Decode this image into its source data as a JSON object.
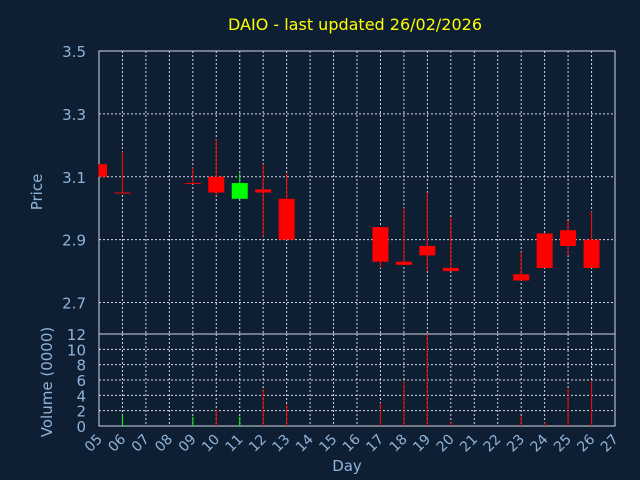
{
  "chart_data": [
    {
      "type": "candlestick",
      "title": "DAIO - last updated 26/02/2026",
      "ylabel": "Price",
      "ylim": [
        2.6,
        3.5
      ],
      "yticks": [
        "3.5",
        "3.3",
        "3.1",
        "2.9",
        "2.7"
      ],
      "grid": true,
      "colors": {
        "up": "#00ff00",
        "down": "#ff0000"
      },
      "candles": [
        {
          "day": "05",
          "open": 3.14,
          "high": 3.14,
          "low": 3.1,
          "close": 3.1
        },
        {
          "day": "06",
          "open": 3.05,
          "high": 3.18,
          "low": 3.05,
          "close": 3.05
        },
        {
          "day": "09",
          "open": 3.08,
          "high": 3.13,
          "low": 3.08,
          "close": 3.08
        },
        {
          "day": "10",
          "open": 3.1,
          "high": 3.22,
          "low": 3.04,
          "close": 3.05
        },
        {
          "day": "11",
          "open": 3.03,
          "high": 3.11,
          "low": 3.03,
          "close": 3.08
        },
        {
          "day": "12",
          "open": 3.06,
          "high": 3.14,
          "low": 2.91,
          "close": 3.05
        },
        {
          "day": "13",
          "open": 3.03,
          "high": 3.11,
          "low": 2.9,
          "close": 2.9
        },
        {
          "day": "17",
          "open": 2.94,
          "high": 2.94,
          "low": 2.81,
          "close": 2.83
        },
        {
          "day": "18",
          "open": 2.83,
          "high": 3.0,
          "low": 2.82,
          "close": 2.82
        },
        {
          "day": "19",
          "open": 2.88,
          "high": 3.05,
          "low": 2.8,
          "close": 2.85
        },
        {
          "day": "20",
          "open": 2.81,
          "high": 2.97,
          "low": 2.8,
          "close": 2.8
        },
        {
          "day": "23",
          "open": 2.79,
          "high": 2.86,
          "low": 2.77,
          "close": 2.77
        },
        {
          "day": "24",
          "open": 2.92,
          "high": 2.92,
          "low": 2.81,
          "close": 2.81
        },
        {
          "day": "25",
          "open": 2.93,
          "high": 2.96,
          "low": 2.85,
          "close": 2.88
        },
        {
          "day": "26",
          "open": 2.9,
          "high": 2.99,
          "low": 2.81,
          "close": 2.81
        }
      ]
    },
    {
      "type": "bar",
      "ylabel": "Volume (0000)",
      "xlabel": "Day",
      "ylim": [
        0,
        12
      ],
      "yticks": [
        "12",
        "10",
        "8",
        "6",
        "4",
        "2",
        "0"
      ],
      "categories": [
        "05",
        "06",
        "07",
        "08",
        "09",
        "10",
        "11",
        "12",
        "13",
        "14",
        "15",
        "16",
        "17",
        "18",
        "19",
        "20",
        "21",
        "22",
        "23",
        "24",
        "25",
        "26",
        "27"
      ],
      "volumes": [
        {
          "day": "06",
          "value": 1.5,
          "color": "#00ff00"
        },
        {
          "day": "09",
          "value": 1.2,
          "color": "#00ff00"
        },
        {
          "day": "10",
          "value": 2.2,
          "color": "#ff0000"
        },
        {
          "day": "11",
          "value": 1.2,
          "color": "#00ff00"
        },
        {
          "day": "12",
          "value": 4.8,
          "color": "#ff0000"
        },
        {
          "day": "13",
          "value": 2.8,
          "color": "#ff0000"
        },
        {
          "day": "17",
          "value": 3.0,
          "color": "#ff0000"
        },
        {
          "day": "18",
          "value": 5.8,
          "color": "#ff0000"
        },
        {
          "day": "19",
          "value": 12.0,
          "color": "#ff0000"
        },
        {
          "day": "20",
          "value": 0.6,
          "color": "#ff0000"
        },
        {
          "day": "23",
          "value": 1.3,
          "color": "#ff0000"
        },
        {
          "day": "24",
          "value": 0.5,
          "color": "#ff0000"
        },
        {
          "day": "25",
          "value": 4.9,
          "color": "#ff0000"
        },
        {
          "day": "26",
          "value": 5.8,
          "color": "#ff0000"
        }
      ]
    }
  ]
}
